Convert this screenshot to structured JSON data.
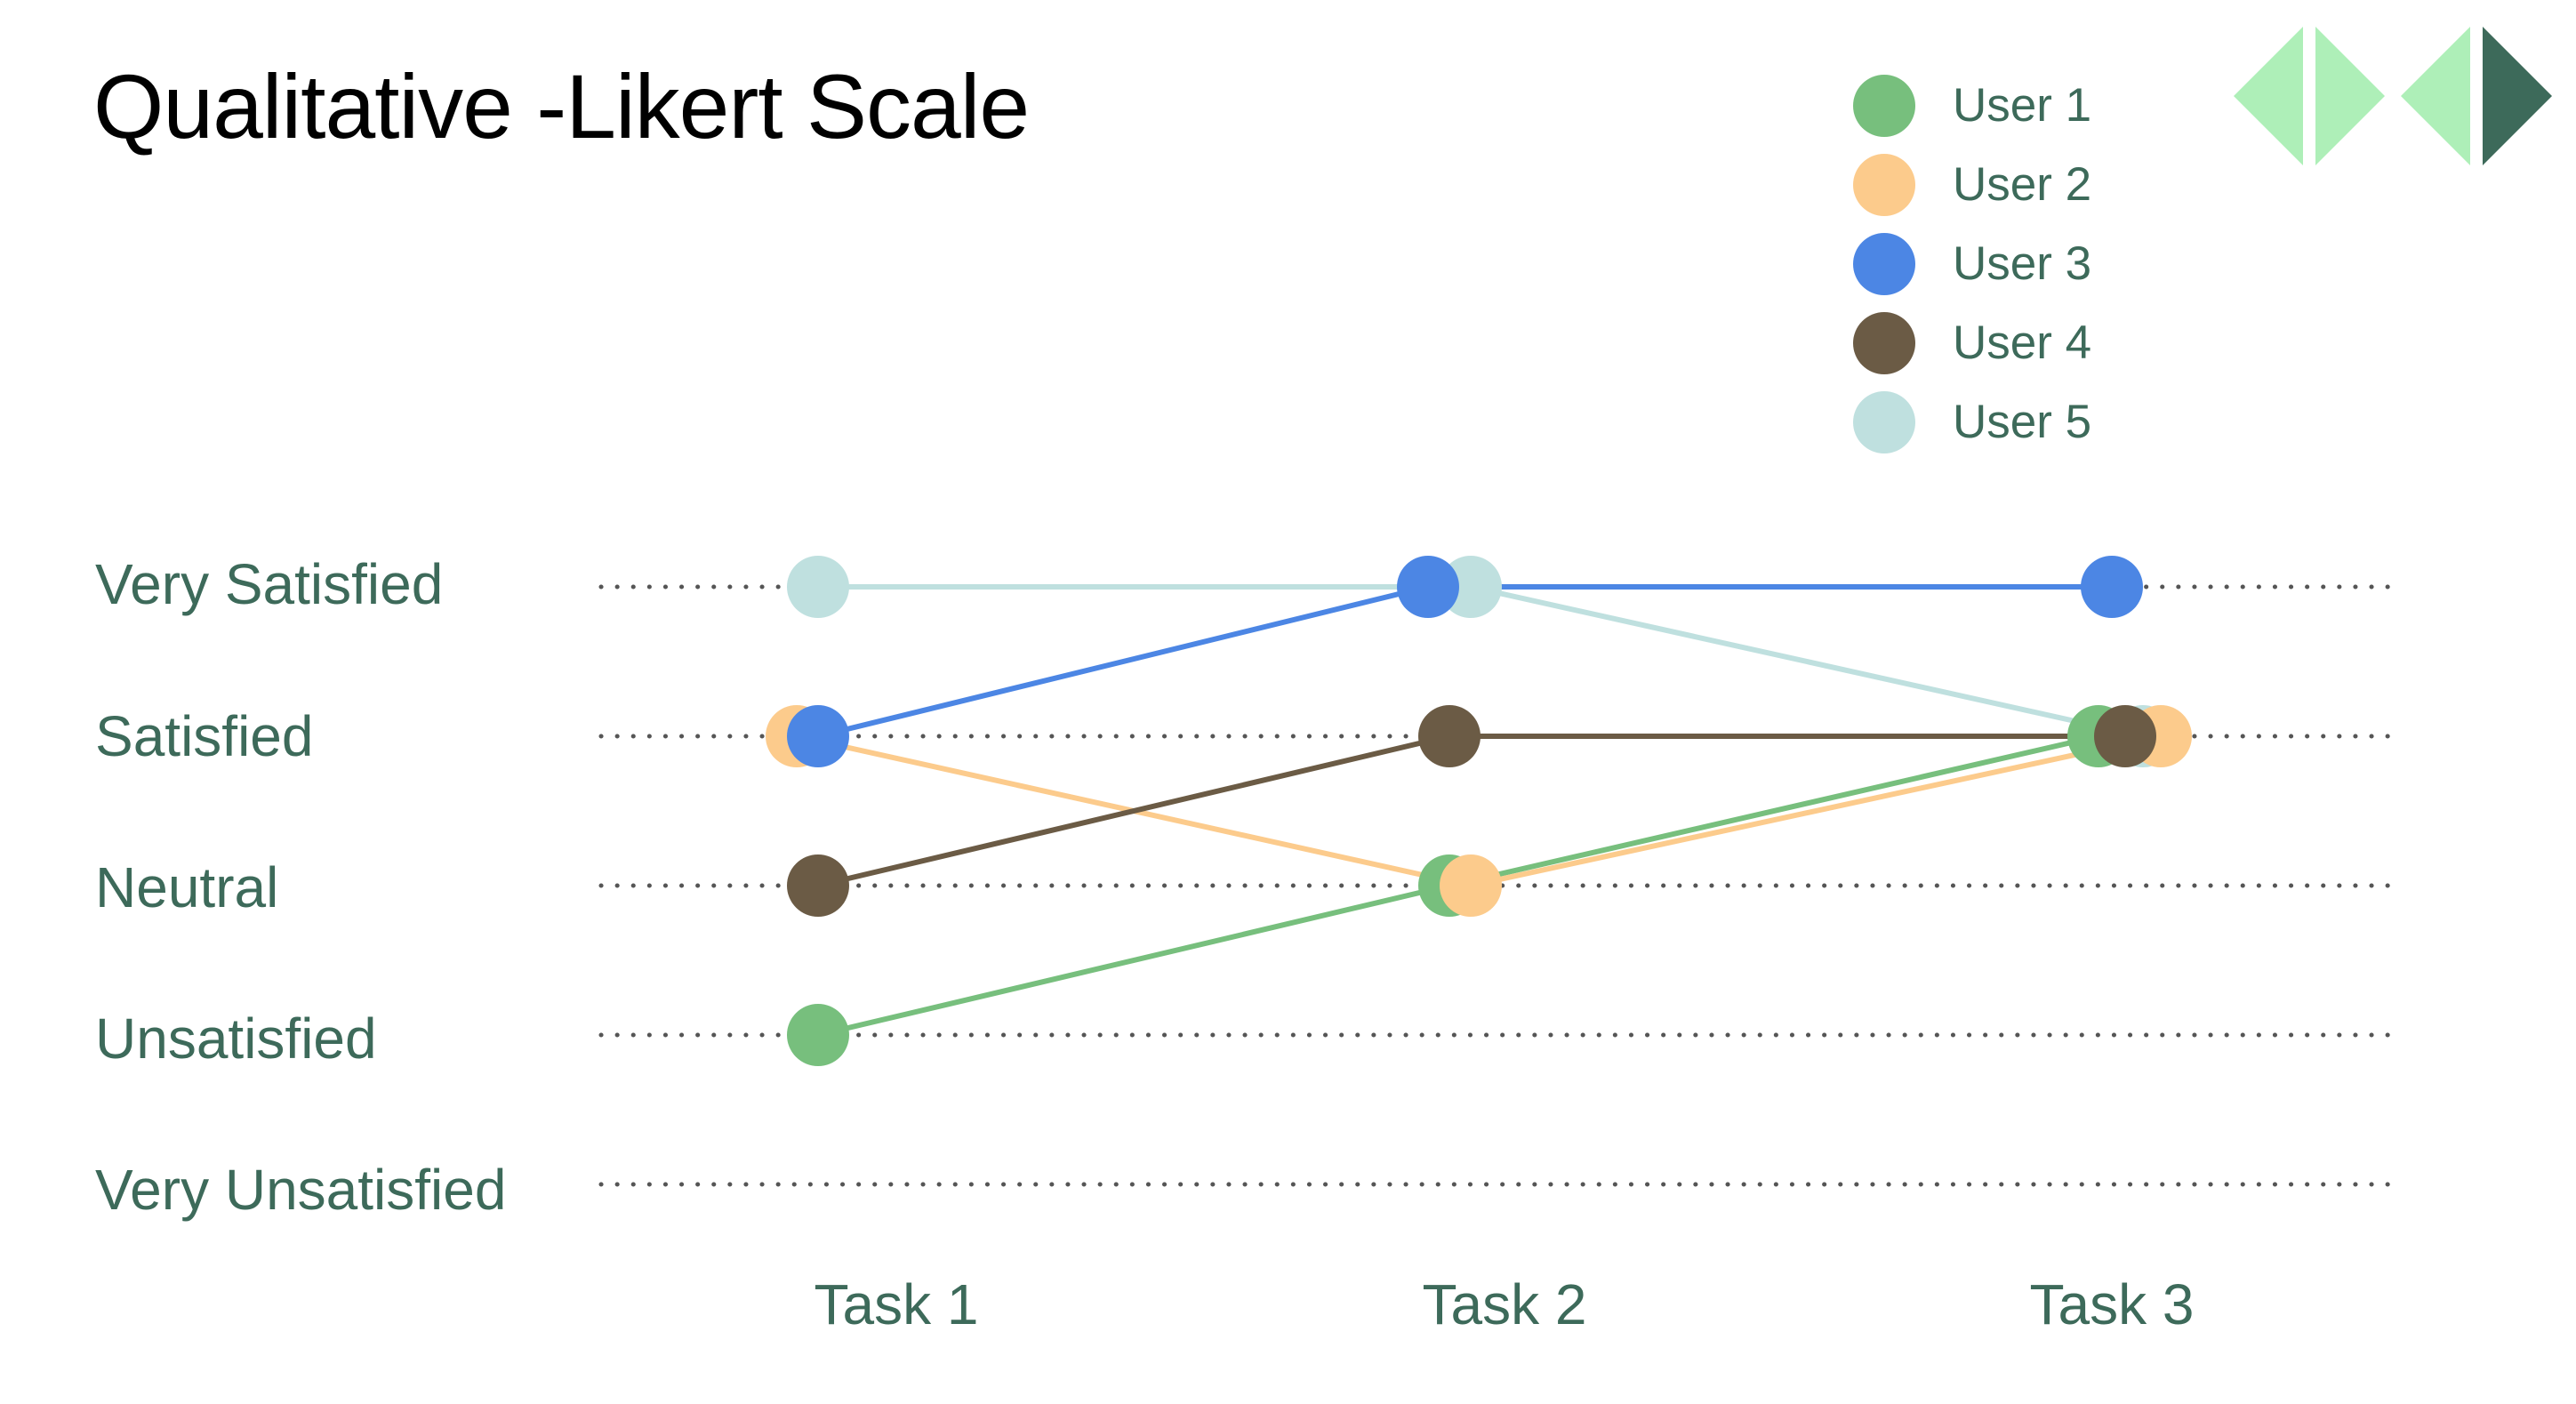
{
  "slide": {
    "title": "Qualitative -Likert Scale"
  },
  "colors": {
    "text": "#3d6a5a",
    "gridline": "#555555",
    "logo_light": "#aeefb8",
    "logo_dark": "#3d6a5a"
  },
  "chart_data": {
    "type": "line",
    "title": "Qualitative -Likert Scale",
    "categories": [
      "Task 1",
      "Task 2",
      "Task 3"
    ],
    "levels": [
      "Very Unsatisfied",
      "Unsatisfied",
      "Neutral",
      "Satisfied",
      "Very Satisfied"
    ],
    "ylim": [
      1,
      5
    ],
    "grid": "dotted horizontal",
    "legend_position": "top-right",
    "series": [
      {
        "name": "User 1",
        "color": "#77bf7d",
        "values": [
          2,
          3,
          4
        ]
      },
      {
        "name": "User 2",
        "color": "#fccb8c",
        "values": [
          4,
          3,
          4
        ]
      },
      {
        "name": "User 3",
        "color": "#4c86e4",
        "values": [
          4,
          5,
          5
        ]
      },
      {
        "name": "User 4",
        "color": "#6b5b45",
        "values": [
          3,
          4,
          4
        ]
      },
      {
        "name": "User 5",
        "color": "#bfe0df",
        "values": [
          5,
          5,
          4
        ]
      }
    ]
  }
}
